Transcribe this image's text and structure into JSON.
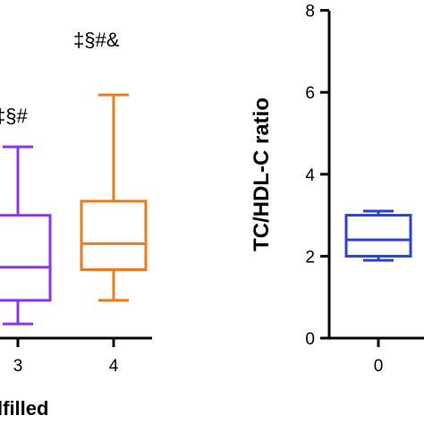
{
  "chart_data": [
    {
      "type": "box",
      "x_ticks": [
        "3",
        "4"
      ],
      "xlabel_fragment": "lfilled",
      "boxes": [
        {
          "category": "3",
          "min": 0.6,
          "q1": 1.6,
          "median": 3.0,
          "q3": 5.2,
          "max": 8.1,
          "color": "#8c35f0",
          "annotation": "‡§#"
        },
        {
          "category": "4",
          "min": 1.6,
          "q1": 2.9,
          "median": 4.0,
          "q3": 5.8,
          "max": 10.3,
          "color": "#f07a18",
          "annotation": "‡§#&"
        }
      ]
    },
    {
      "type": "box",
      "ylabel": "TC/HDL-C ratio",
      "yticks": [
        "0",
        "2",
        "4",
        "6",
        "8"
      ],
      "ylim": [
        0,
        8
      ],
      "x_ticks": [
        "0"
      ],
      "boxes": [
        {
          "category": "0",
          "min": 1.9,
          "q1": 2.0,
          "median": 2.4,
          "q3": 3.0,
          "max": 3.1,
          "color": "#2b3fe0"
        }
      ]
    }
  ]
}
